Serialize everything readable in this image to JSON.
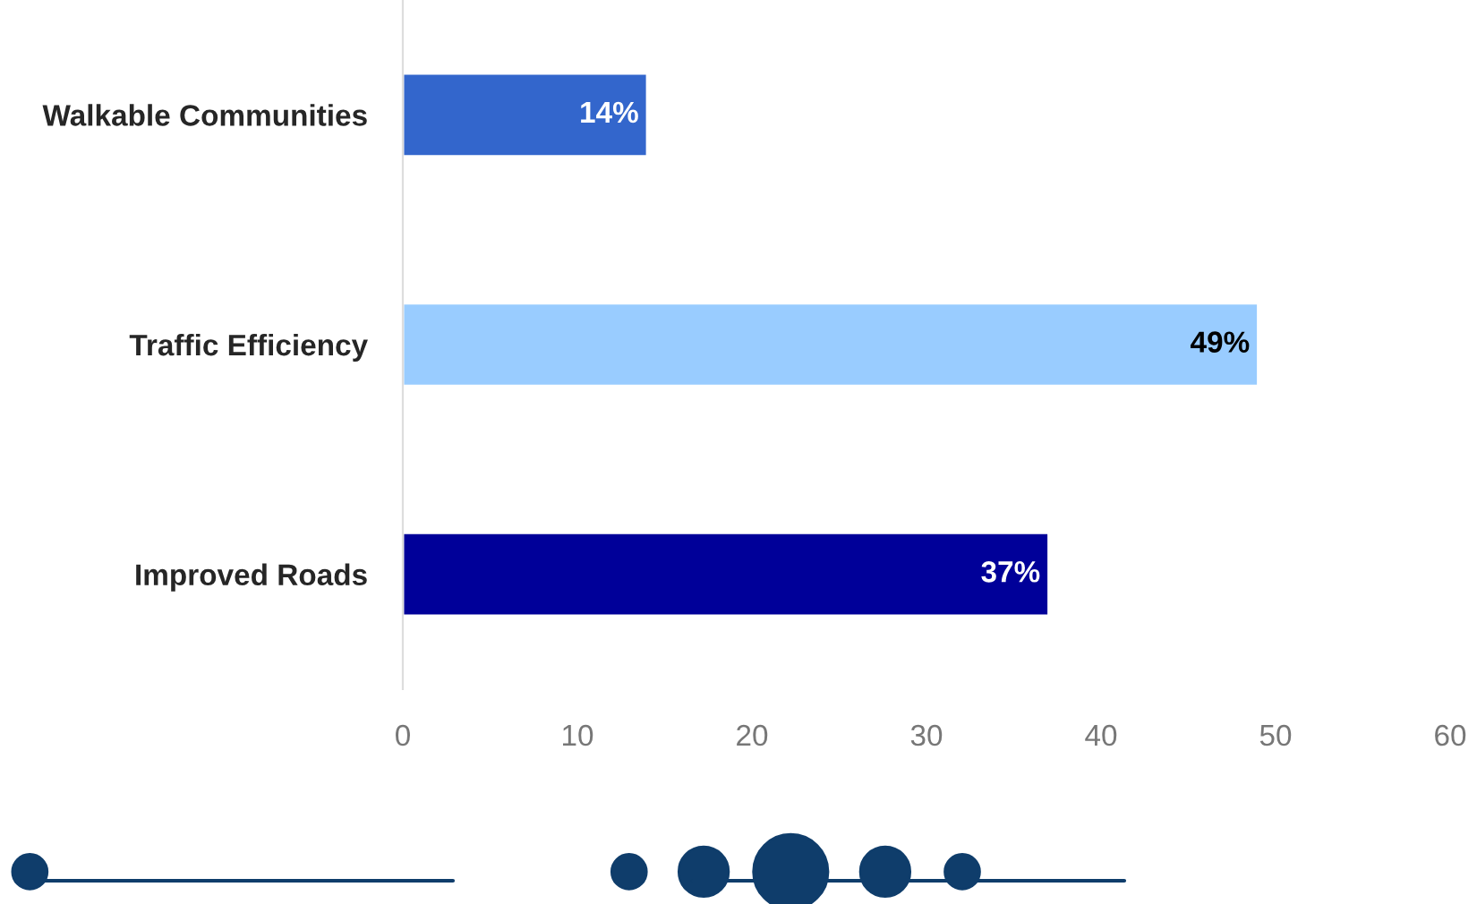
{
  "chart_data": {
    "type": "bar",
    "orientation": "horizontal",
    "categories": [
      "Walkable Communities",
      "Traffic Efficiency",
      "Improved Roads"
    ],
    "values": [
      14,
      49,
      37
    ],
    "colors": [
      "#3366cc",
      "#99ccff",
      "#000099"
    ],
    "value_labels": [
      "14%",
      "49%",
      "37%"
    ],
    "xlim": [
      0,
      60
    ],
    "xticks": [
      0,
      10,
      20,
      30,
      40,
      50,
      60
    ],
    "grid": false,
    "legend": false
  }
}
